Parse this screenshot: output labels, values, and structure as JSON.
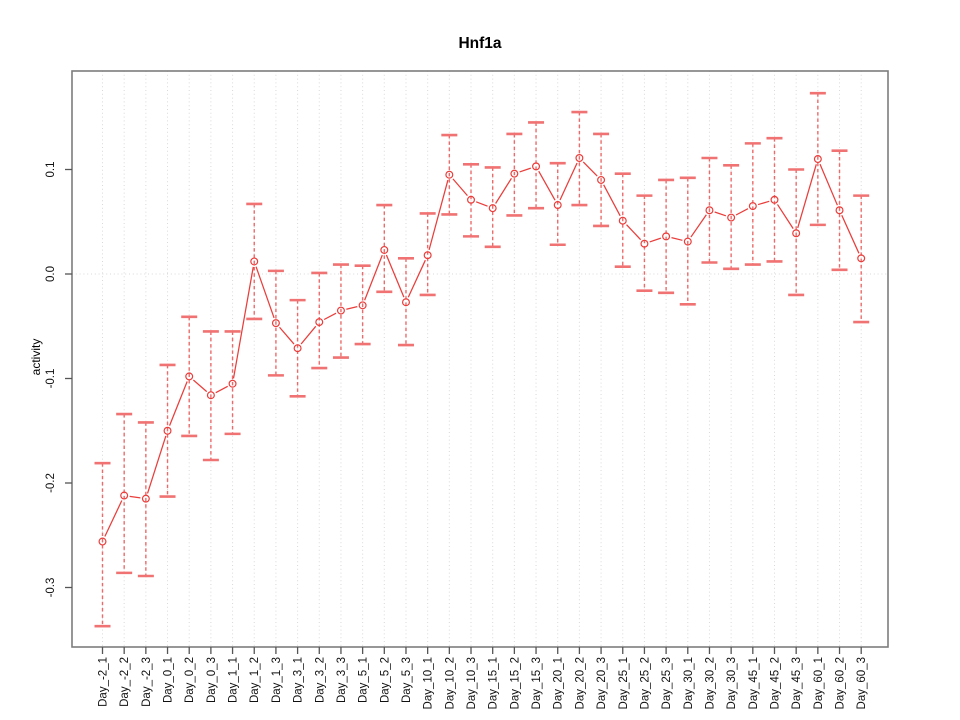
{
  "title": "Hnf1a",
  "colors": {
    "series": "#ea3d3a",
    "error_stem": "#ec5b5b",
    "error_cap": "#f07272",
    "grid": "#d9d9d9",
    "box": "#7d7d7d",
    "tick": "#555555",
    "text": "#111111",
    "background": "#ffffff"
  },
  "chart_data": {
    "type": "line",
    "title": "Hnf1a",
    "xlabel": "",
    "ylabel": "activity",
    "legend": "none",
    "grid": "vertical dotted gridline at every category; horizontal dotted line at y=0 only",
    "marker": "open-circle",
    "error_bars": "dashed vertical stem with horizontal caps (confidence interval)",
    "ylim": [
      -0.357,
      0.195
    ],
    "yticks": [
      0.1,
      0.0,
      -0.1,
      -0.2,
      -0.3
    ],
    "ytick_labels": [
      "0.1",
      "0.0",
      "-0.1",
      "-0.2",
      "-0.3"
    ],
    "categories": [
      "Day_-2_1",
      "Day_-2_2",
      "Day_-2_3",
      "Day_0_1",
      "Day_0_2",
      "Day_0_3",
      "Day_1_1",
      "Day_1_2",
      "Day_1_3",
      "Day_3_1",
      "Day_3_2",
      "Day_3_3",
      "Day_5_1",
      "Day_5_2",
      "Day_5_3",
      "Day_10_1",
      "Day_10_2",
      "Day_10_3",
      "Day_15_1",
      "Day_15_2",
      "Day_15_3",
      "Day_20_1",
      "Day_20_2",
      "Day_20_3",
      "Day_25_1",
      "Day_25_2",
      "Day_25_3",
      "Day_30_1",
      "Day_30_2",
      "Day_30_3",
      "Day_45_1",
      "Day_45_2",
      "Day_45_3",
      "Day_60_1",
      "Day_60_2",
      "Day_60_3"
    ],
    "series": [
      {
        "name": "activity",
        "values": [
          -0.256,
          -0.212,
          -0.215,
          -0.15,
          -0.098,
          -0.116,
          -0.105,
          0.012,
          -0.047,
          -0.071,
          -0.046,
          -0.035,
          -0.03,
          0.023,
          -0.027,
          0.018,
          0.095,
          0.071,
          0.063,
          0.096,
          0.103,
          0.066,
          0.111,
          0.09,
          0.051,
          0.029,
          0.036,
          0.031,
          0.061,
          0.054,
          0.065,
          0.071,
          0.039,
          0.11,
          0.061,
          0.015
        ],
        "error_high": [
          -0.181,
          -0.134,
          -0.142,
          -0.087,
          -0.041,
          -0.055,
          -0.055,
          0.067,
          0.003,
          -0.025,
          0.001,
          0.009,
          0.008,
          0.066,
          0.015,
          0.058,
          0.133,
          0.105,
          0.102,
          0.134,
          0.145,
          0.106,
          0.155,
          0.134,
          0.096,
          0.075,
          0.09,
          0.092,
          0.111,
          0.104,
          0.125,
          0.13,
          0.1,
          0.173,
          0.118,
          0.075
        ],
        "error_low": [
          -0.337,
          -0.286,
          -0.289,
          -0.213,
          -0.155,
          -0.178,
          -0.153,
          -0.043,
          -0.097,
          -0.117,
          -0.09,
          -0.08,
          -0.067,
          -0.017,
          -0.068,
          -0.02,
          0.057,
          0.036,
          0.026,
          0.056,
          0.063,
          0.028,
          0.066,
          0.046,
          0.007,
          -0.016,
          -0.018,
          -0.029,
          0.011,
          0.005,
          0.009,
          0.012,
          -0.02,
          0.047,
          0.004,
          -0.046
        ]
      }
    ]
  }
}
